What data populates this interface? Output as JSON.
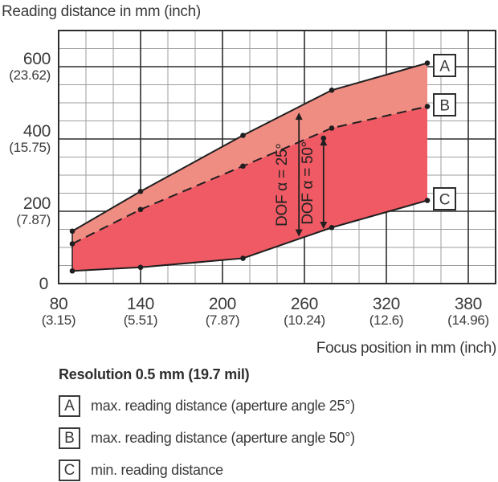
{
  "title": "Reading distance in mm (inch)",
  "x_axis_title": "Focus position in mm (inch)",
  "legend": {
    "heading": "Resolution 0.5 mm (19.7 mil)",
    "items": [
      {
        "key": "A",
        "label": "max. reading distance (aperture angle 25°)"
      },
      {
        "key": "B",
        "label": "max. reading distance (aperture angle 50°)"
      },
      {
        "key": "C",
        "label": "min. reading distance"
      }
    ]
  },
  "chart_data": {
    "type": "area",
    "title": "Reading distance in mm (inch)",
    "xlabel": "Focus position in mm (inch)",
    "ylabel": "Reading distance in mm (inch)",
    "xlim": [
      80,
      400
    ],
    "ylim": [
      0,
      700
    ],
    "x_major_step": 60,
    "x_minor_step": 20,
    "y_major_step": 200,
    "y_minor_step": 50,
    "grid": true,
    "x": [
      90,
      140,
      215,
      280,
      350
    ],
    "series": [
      {
        "name": "A",
        "label": "max. reading distance (aperture angle 25°)",
        "style": "solid",
        "values": [
          145,
          255,
          410,
          535,
          610
        ]
      },
      {
        "name": "B",
        "label": "max. reading distance (aperture angle 50°)",
        "style": "dashed",
        "values": [
          110,
          205,
          325,
          430,
          490
        ]
      },
      {
        "name": "C",
        "label": "min. reading distance",
        "style": "solid",
        "values": [
          35,
          45,
          70,
          155,
          230
        ]
      }
    ],
    "x_ticks": [
      {
        "mm": "80",
        "inch": "(3.15)"
      },
      {
        "mm": "140",
        "inch": "(5.51)"
      },
      {
        "mm": "200",
        "inch": "(7.87)"
      },
      {
        "mm": "260",
        "inch": "(10.24)"
      },
      {
        "mm": "320",
        "inch": "(12.6)"
      },
      {
        "mm": "380",
        "inch": "(14.96)"
      }
    ],
    "y_ticks": [
      {
        "mm": "0",
        "inch": ""
      },
      {
        "mm": "200",
        "inch": "(7.87)"
      },
      {
        "mm": "400",
        "inch": "(15.75)"
      },
      {
        "mm": "600",
        "inch": "(23.62)"
      }
    ],
    "annotations": [
      {
        "text": "DOF α = 25°",
        "arrow_x": 256,
        "y_from": 130,
        "y_to": 473,
        "label_x": 247,
        "label_y": 273,
        "dot_at_top": false
      },
      {
        "text": "DOF α = 50°",
        "arrow_x": 274,
        "y_from": 151,
        "y_to": 402,
        "label_x": 266,
        "label_y": 278,
        "dot_at_top": true
      }
    ],
    "colors": {
      "area_top": "#f08d83",
      "area_bottom": "#f05a64",
      "line": "#1f1f1f",
      "grid_minor": "#9e9e9e",
      "grid_major": "#2d2d2d",
      "text": "#3a3a3a"
    }
  }
}
